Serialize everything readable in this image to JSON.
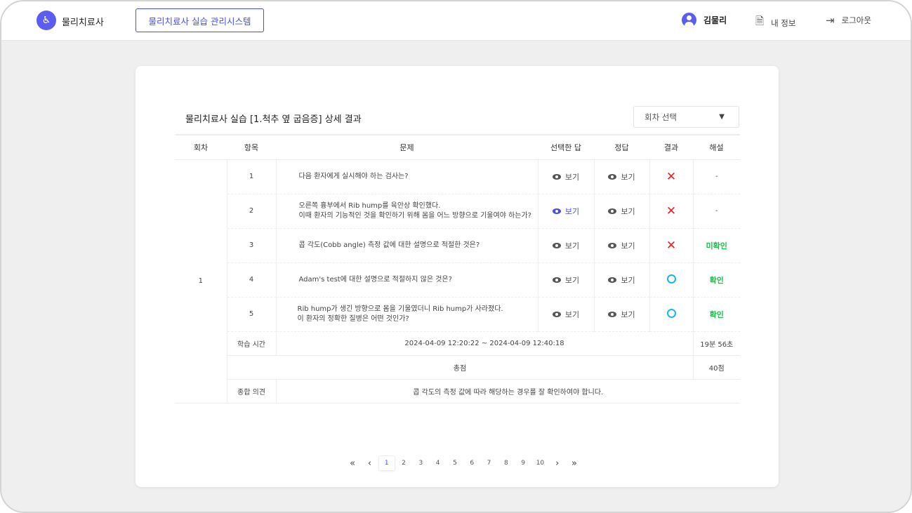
{
  "header": {
    "brand": "물리치료사",
    "system_button": "물리치료사 실습 관리시스템",
    "user_name": "김물리",
    "my_info": "내 정보",
    "logout": "로그아웃"
  },
  "main": {
    "title": "물리치료사 실습 [1.척추 옆 굽음증] 상세 결과",
    "round_select": "회차 선택",
    "columns": [
      "회차",
      "항목",
      "문제",
      "선택한 답",
      "정답",
      "결과",
      "해설"
    ],
    "round": "1",
    "view_label": "보기",
    "rows": [
      {
        "no": "1",
        "question": [
          "다음 환자에게 실시해야 하는 검사는?"
        ],
        "result": "wrong",
        "explanation": "-",
        "selected_active": false
      },
      {
        "no": "2",
        "question": [
          "오른쪽 흉부에서 Rib hump를 육안상 확인했다.",
          "이때 환자의 기능적인 것을 확인하기 위해 몸을 어느 방향으로 기울여야 하는가?"
        ],
        "result": "wrong",
        "explanation": "-",
        "selected_active": true
      },
      {
        "no": "3",
        "question": [
          "콥 각도(Cobb angle) 측정 값에 대한 설명으로 적절한 것은?"
        ],
        "result": "wrong",
        "explanation": "미확인",
        "selected_active": false
      },
      {
        "no": "4",
        "question": [
          "Adam's test에 대한 설명으로 적절하지 않은 것은?"
        ],
        "result": "correct",
        "explanation": "확인",
        "selected_active": false
      },
      {
        "no": "5",
        "question": [
          "Rib hump가 생긴 방향으로 몸을 기울였더니 Rib hump가 사라졌다.",
          "이 환자의 정확한 질병은 어떤 것인가?"
        ],
        "result": "correct",
        "explanation": "확인",
        "selected_active": false
      }
    ],
    "study_time": {
      "label": "학습 시간",
      "range": "2024-04-09 12:20:22 ~ 2024-04-09 12:40:18",
      "duration": "19분 56초"
    },
    "total": {
      "label": "총점",
      "value": "40점"
    },
    "opinion": {
      "label": "종합 의견",
      "value": "콥 각도의 측정 값에 따라 해당하는 경우를 잘 확인하여야 합니다."
    }
  },
  "pagination": {
    "pages": [
      "1",
      "2",
      "3",
      "4",
      "5",
      "6",
      "7",
      "8",
      "9",
      "10"
    ],
    "current": "1"
  },
  "colors": {
    "accent": "#4a4ee8",
    "wrong": "#f01c1c",
    "correct": "#1ab3ee",
    "confirmed": "#1fbf4b"
  }
}
